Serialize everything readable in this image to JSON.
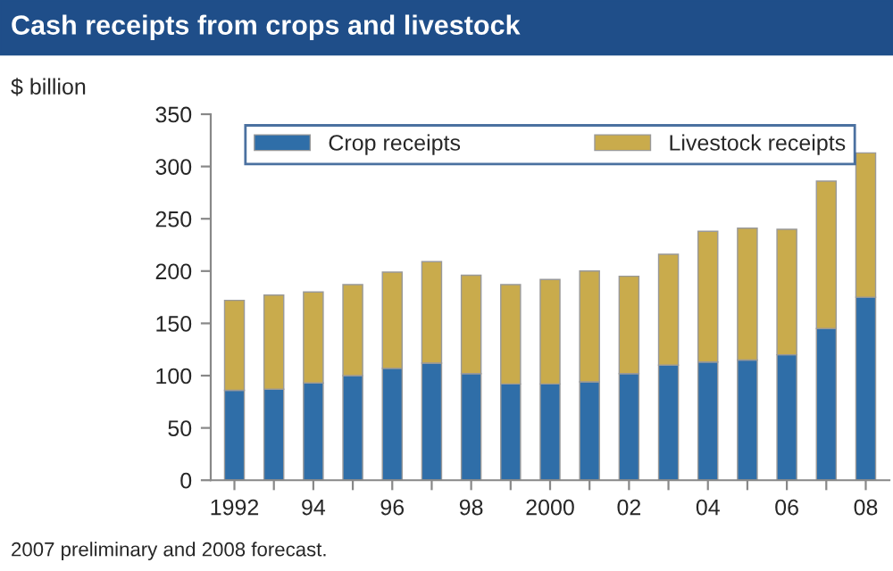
{
  "chart_data": {
    "type": "bar",
    "stacked": true,
    "title": "Cash receipts from crops and livestock",
    "ylabel": "$ billion",
    "categories": [
      "1992",
      null,
      "94",
      null,
      "96",
      null,
      "98",
      null,
      "2000",
      null,
      "02",
      null,
      "04",
      null,
      "06",
      null,
      "08"
    ],
    "series": [
      {
        "name": "Crop receipts",
        "color": "#2f6ea8",
        "values": [
          86,
          87,
          93,
          100,
          107,
          112,
          102,
          92,
          92,
          94,
          102,
          110,
          113,
          115,
          120,
          145,
          175
        ]
      },
      {
        "name": "Livestock receipts",
        "color": "#c9ab4c",
        "values": [
          86,
          90,
          87,
          87,
          92,
          97,
          94,
          95,
          100,
          106,
          93,
          106,
          125,
          126,
          120,
          141,
          138
        ]
      }
    ],
    "ylim": [
      0,
      350
    ],
    "yticks": [
      0,
      50,
      100,
      150,
      200,
      250,
      300,
      350
    ],
    "grid": false,
    "legend": "top",
    "annotations": [
      "2007 preliminary and 2008 forecast."
    ]
  }
}
